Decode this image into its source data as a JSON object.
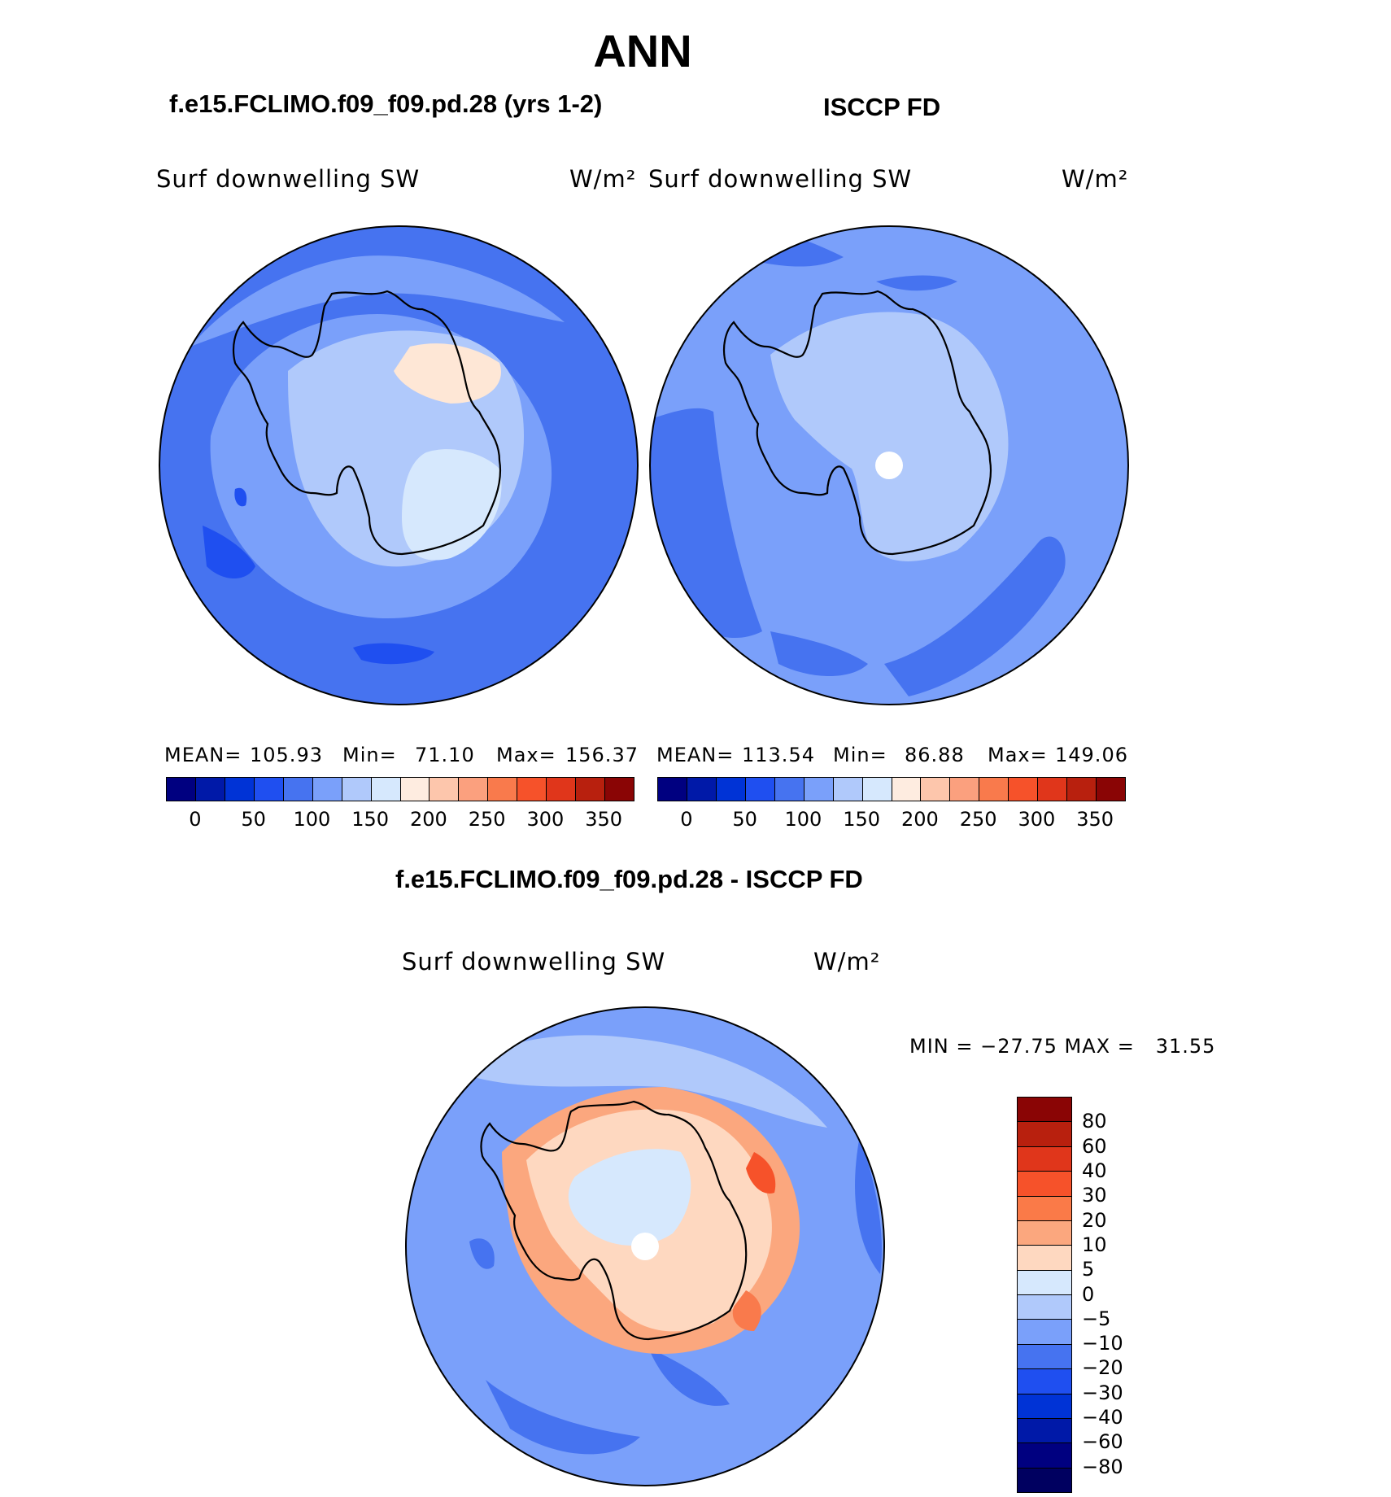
{
  "title": "ANN",
  "panels": {
    "model": {
      "case_title": "f.e15.FCLIMO.f09_f09.pd.28 (yrs 1-2)",
      "variable": "Surf downwelling SW",
      "units": "W/m²",
      "mean_label": "MEAN=",
      "mean": "105.93",
      "min_label": "Min=",
      "min": "71.10",
      "max_label": "Max=",
      "max": "156.37"
    },
    "obs": {
      "case_title": "ISCCP FD",
      "variable": "Surf downwelling SW",
      "units": "W/m²",
      "mean_label": "MEAN=",
      "mean": "113.54",
      "min_label": "Min=",
      "min": "86.88",
      "max_label": "Max=",
      "max": "149.06"
    },
    "diff": {
      "case_title": "f.e15.FCLIMO.f09_f09.pd.28 - ISCCP FD",
      "variable": "Surf downwelling SW",
      "units": "W/m²",
      "minmax_text": "MIN = −27.75 MAX =   31.55"
    }
  },
  "colorbar_main": {
    "colors": [
      "#000080",
      "#0019a8",
      "#0033d6",
      "#1f4ff0",
      "#4673f0",
      "#7aa0fa",
      "#b0c9fb",
      "#d6e8fd",
      "#feece0",
      "#fdc6ac",
      "#fba07e",
      "#f97a4c",
      "#f6522a",
      "#e0361b",
      "#b8200e",
      "#8a0505"
    ],
    "tick_labels": [
      "0",
      "50",
      "100",
      "150",
      "200",
      "250",
      "300",
      "350"
    ]
  },
  "colorbar_diff": {
    "colors": [
      "#8a0505",
      "#b8200e",
      "#e0361b",
      "#f6522a",
      "#fa7a48",
      "#fba77e",
      "#fed8c0",
      "#d6e8fd",
      "#b0c9fb",
      "#7aa0fa",
      "#4673f0",
      "#1f4ff0",
      "#0033d6",
      "#0019a8",
      "#000080"
    ],
    "tick_labels": [
      "80",
      "60",
      "40",
      "30",
      "20",
      "10",
      "5",
      "0",
      "−5",
      "−10",
      "−20",
      "−30",
      "−40",
      "−60",
      "−80"
    ]
  }
}
